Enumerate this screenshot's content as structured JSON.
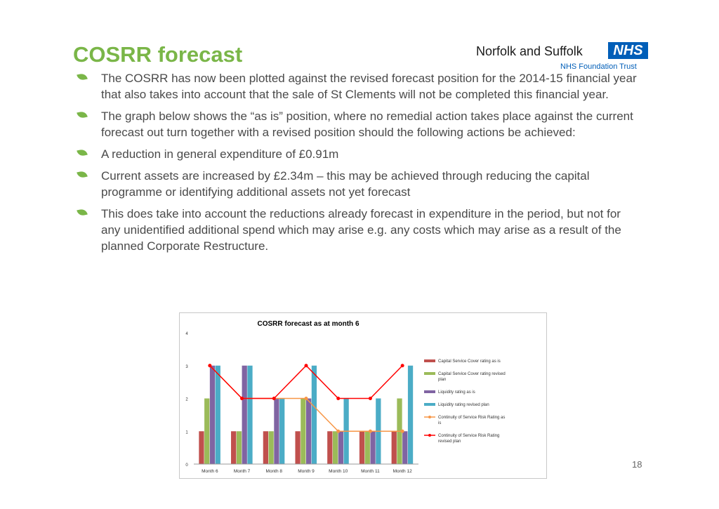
{
  "slide": {
    "title": "COSRR forecast",
    "page_number": "18",
    "logo": {
      "name": "Norfolk and Suffolk",
      "badge": "NHS",
      "subtitle": "NHS Foundation Trust"
    },
    "bullets": [
      "The COSRR has now been plotted against the revised forecast position for the 2014-15 financial year  that also takes into account that the sale of St Clements will not be completed this financial year.",
      "The graph below shows the “as is” position, where no remedial action takes place against the current forecast out turn together with a revised position should the following actions be achieved:",
      "A reduction in general expenditure of £0.91m",
      "Current assets are increased by £2.34m – this may be achieved through reducing the capital programme or identifying additional assets not yet forecast",
      "This does take into account the reductions already forecast in expenditure in the period, but not for any unidentified additional spend which may arise e.g. any costs which may arise as a result of the planned Corporate Restructure."
    ]
  },
  "chart_data": {
    "type": "bar",
    "title": "COSRR forecast as at month 6",
    "categories": [
      "Month 6",
      "Month 7",
      "Month 8",
      "Month 9",
      "Month 10",
      "Month 11",
      "Month 12"
    ],
    "ylim": [
      0,
      4
    ],
    "yticks": [
      "0",
      "1",
      "2",
      "3",
      "4"
    ],
    "legend_position": "right",
    "series": [
      {
        "name": "Capital Service Cover rating as is",
        "kind": "bar",
        "color": "#c0504d",
        "values": [
          1,
          1,
          1,
          1,
          1,
          1,
          1
        ]
      },
      {
        "name": "Capital Service Cover rating revised plan",
        "kind": "bar",
        "color": "#9bbb59",
        "values": [
          2,
          1,
          1,
          2,
          1,
          1,
          2
        ]
      },
      {
        "name": "Liquidity rating as is",
        "kind": "bar",
        "color": "#8064a2",
        "values": [
          3,
          3,
          2,
          2,
          1,
          1,
          1
        ]
      },
      {
        "name": "Liquidity rating revised plan",
        "kind": "bar",
        "color": "#4bacc6",
        "values": [
          3,
          3,
          2,
          3,
          2,
          2,
          3
        ]
      },
      {
        "name": "Continuity of Service Risk Rating as is",
        "kind": "line",
        "color": "#f79646",
        "values": [
          3,
          2,
          2,
          2,
          1,
          1,
          1
        ]
      },
      {
        "name": "Continuity of Service Risk Rating revised plan",
        "kind": "line",
        "color": "#ff0000",
        "values": [
          3,
          2,
          2,
          3,
          2,
          2,
          3
        ]
      }
    ]
  }
}
